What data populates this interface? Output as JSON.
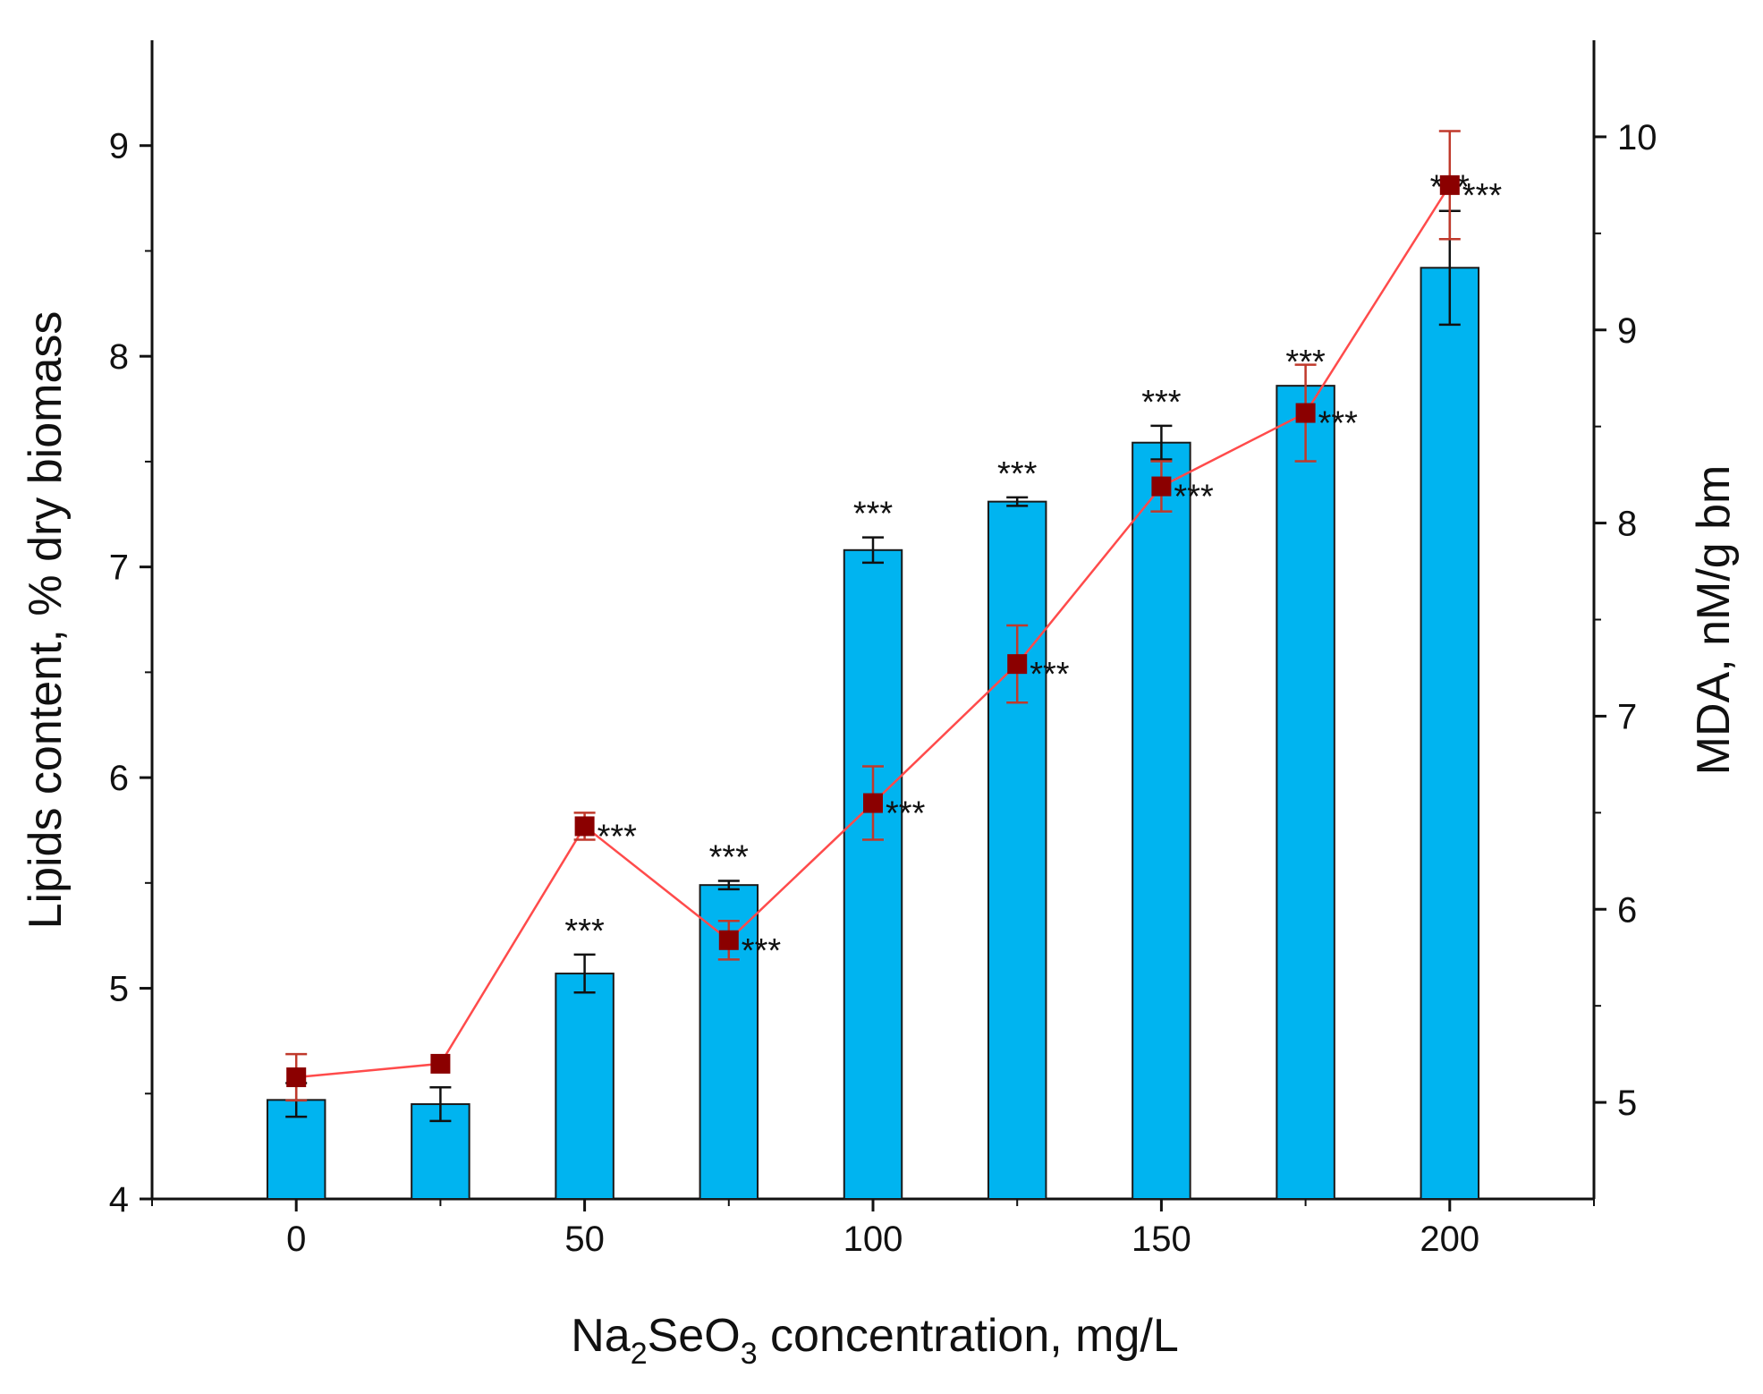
{
  "chart_data": {
    "type": "bar",
    "title": "",
    "xlabel": {
      "prefix": "Na",
      "sub1": "2",
      "mid": "SeO",
      "sub2": "3",
      "suffix": " concentration, mg/L"
    },
    "ylabel": "Lipids content, % dry biomass",
    "y2label": "MDA, nM/g bm",
    "x_ticks": [
      "0",
      "50",
      "100",
      "150",
      "200"
    ],
    "x_tick_values": [
      0,
      50,
      100,
      150,
      200
    ],
    "xlim": [
      -25,
      225
    ],
    "ylim": [
      4,
      9.5
    ],
    "y_ticks": [
      "4",
      "5",
      "6",
      "7",
      "8",
      "9"
    ],
    "y_tick_values": [
      4,
      5,
      6,
      7,
      8,
      9
    ],
    "y2lim": [
      4.5,
      10.5
    ],
    "y2_ticks": [
      "5",
      "6",
      "7",
      "8",
      "9",
      "10"
    ],
    "y2_tick_values": [
      5,
      6,
      7,
      8,
      9,
      10
    ],
    "colors": {
      "bar_fill": "#00b4f0",
      "bar_stroke": "#1a1a1a",
      "line": "#ff4b4b",
      "marker": "#8b0000",
      "line_err": "#c0392b",
      "axis": "#111111"
    },
    "series": [
      {
        "name": "Lipids content",
        "type": "bar",
        "axis": "left",
        "x": [
          0,
          25,
          50,
          75,
          100,
          125,
          150,
          175,
          200
        ],
        "values": [
          4.47,
          4.45,
          5.07,
          5.49,
          7.08,
          7.31,
          7.59,
          7.86,
          8.42
        ],
        "errors": [
          0.08,
          0.08,
          0.09,
          0.02,
          0.06,
          0.02,
          0.08,
          0.0,
          0.27
        ],
        "significance": [
          "",
          "",
          "***",
          "***",
          "***",
          "***",
          "***",
          "***",
          "***"
        ]
      },
      {
        "name": "MDA",
        "type": "line",
        "axis": "right",
        "x": [
          0,
          25,
          50,
          75,
          100,
          125,
          150,
          175,
          200
        ],
        "values": [
          5.13,
          5.2,
          6.43,
          5.84,
          6.55,
          7.27,
          8.19,
          8.57,
          9.75
        ],
        "errors": [
          0.12,
          0.0,
          0.07,
          0.1,
          0.19,
          0.2,
          0.13,
          0.25,
          0.28
        ],
        "significance": [
          "",
          "",
          "***",
          "***",
          "***",
          "***",
          "***",
          "***",
          "***"
        ]
      }
    ]
  }
}
